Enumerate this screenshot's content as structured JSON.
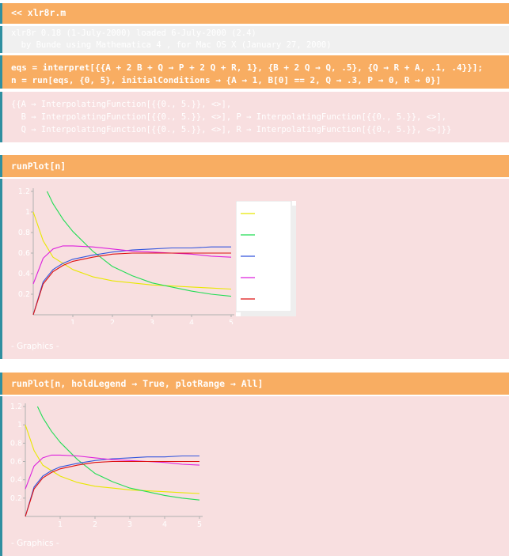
{
  "notebook": {
    "header_cell": "<< xlr8r.m",
    "version_lines": [
      "xlr8r 0.18 (1-July-2000) loaded 6-July-2000 (2.4)",
      "  by Bunde using Mathematica 4 , for Mac OS X (January 27, 2000)"
    ],
    "eqs_input": [
      "eqs = interpret[{{A + 2 B + Q → P + 2 Q + R, 1}, {B + 2 Q → Q, .5}, {Q → R + A, .1, .4}}];",
      "n = run[eqs, {0, 5}, initialConditions → {A → 1, B[0] == 2, Q → .3, P → 0, R → 0}]"
    ],
    "run_output": [
      "{{A → InterpolatingFunction[{{0., 5.}}, <>],",
      "  B → InterpolatingFunction[{{0., 5.}}, <>], P → InterpolatingFunction[{{0., 5.}}, <>],",
      "  Q → InterpolatingFunction[{{0., 5.}}, <>], R → InterpolatingFunction[{{0., 5.}}, <>]}}"
    ],
    "plot1_input": "runPlot[n]",
    "plot1_output": "- Graphics -",
    "plot2_input": "runPlot[n, holdLegend → True, plotRange → All]",
    "plot2_output": "- Graphics -"
  },
  "chart_data": [
    {
      "type": "line",
      "xlim": [
        0,
        5
      ],
      "ylim": [
        0,
        1.2
      ],
      "xticks": [
        "1",
        "2",
        "3",
        "4",
        "5"
      ],
      "yticks": [
        "0.2",
        "0.4",
        "0.6",
        "0.8",
        "1",
        "1.2"
      ],
      "legend": "right",
      "series": [
        {
          "color": "#e8e800",
          "x": [
            0,
            0.25,
            0.5,
            1,
            1.5,
            2,
            2.5,
            3,
            3.5,
            4,
            4.5,
            5
          ],
          "y": [
            1.0,
            0.72,
            0.56,
            0.44,
            0.37,
            0.33,
            0.31,
            0.29,
            0.28,
            0.27,
            0.26,
            0.25
          ]
        },
        {
          "color": "#22dd55",
          "x": [
            0.35,
            0.5,
            0.75,
            1,
            1.5,
            2,
            2.5,
            3,
            3.5,
            4,
            4.5,
            5
          ],
          "y": [
            1.2,
            1.08,
            0.93,
            0.81,
            0.62,
            0.47,
            0.38,
            0.31,
            0.27,
            0.23,
            0.2,
            0.18
          ]
        },
        {
          "color": "#3355dd",
          "x": [
            0,
            0.25,
            0.5,
            0.75,
            1,
            1.5,
            2,
            2.5,
            3,
            3.5,
            4,
            4.5,
            5
          ],
          "y": [
            0.0,
            0.32,
            0.44,
            0.5,
            0.54,
            0.58,
            0.61,
            0.63,
            0.64,
            0.65,
            0.65,
            0.66,
            0.66
          ]
        },
        {
          "color": "#dd22dd",
          "x": [
            0,
            0.25,
            0.5,
            0.75,
            1,
            1.5,
            2,
            2.5,
            3,
            3.5,
            4,
            4.5,
            5
          ],
          "y": [
            0.3,
            0.55,
            0.64,
            0.67,
            0.67,
            0.66,
            0.64,
            0.62,
            0.61,
            0.6,
            0.59,
            0.57,
            0.56
          ]
        },
        {
          "color": "#dd1111",
          "x": [
            0,
            0.25,
            0.5,
            0.75,
            1,
            1.5,
            2,
            2.5,
            3,
            3.5,
            4,
            4.5,
            5
          ],
          "y": [
            0.0,
            0.3,
            0.42,
            0.48,
            0.52,
            0.56,
            0.59,
            0.6,
            0.6,
            0.6,
            0.6,
            0.6,
            0.6
          ]
        }
      ]
    },
    {
      "type": "line",
      "xlim": [
        0,
        5
      ],
      "ylim": [
        0,
        1.2
      ],
      "xticks": [
        "1",
        "2",
        "3",
        "4",
        "5"
      ],
      "yticks": [
        "0.2",
        "0.4",
        "0.6",
        "0.8",
        "1",
        "1.2"
      ],
      "series": [
        {
          "color": "#e8e800",
          "x": [
            0,
            0.25,
            0.5,
            1,
            1.5,
            2,
            2.5,
            3,
            3.5,
            4,
            4.5,
            5
          ],
          "y": [
            1.0,
            0.72,
            0.56,
            0.44,
            0.37,
            0.33,
            0.31,
            0.29,
            0.28,
            0.27,
            0.26,
            0.25
          ]
        },
        {
          "color": "#22dd55",
          "x": [
            0.35,
            0.5,
            0.75,
            1,
            1.5,
            2,
            2.5,
            3,
            3.5,
            4,
            4.5,
            5
          ],
          "y": [
            1.2,
            1.08,
            0.93,
            0.81,
            0.62,
            0.47,
            0.38,
            0.31,
            0.27,
            0.23,
            0.2,
            0.18
          ]
        },
        {
          "color": "#3355dd",
          "x": [
            0,
            0.25,
            0.5,
            0.75,
            1,
            1.5,
            2,
            2.5,
            3,
            3.5,
            4,
            4.5,
            5
          ],
          "y": [
            0.0,
            0.32,
            0.44,
            0.5,
            0.54,
            0.58,
            0.61,
            0.63,
            0.64,
            0.65,
            0.65,
            0.66,
            0.66
          ]
        },
        {
          "color": "#dd22dd",
          "x": [
            0,
            0.25,
            0.5,
            0.75,
            1,
            1.5,
            2,
            2.5,
            3,
            3.5,
            4,
            4.5,
            5
          ],
          "y": [
            0.3,
            0.55,
            0.64,
            0.67,
            0.67,
            0.66,
            0.64,
            0.62,
            0.61,
            0.6,
            0.59,
            0.57,
            0.56
          ]
        },
        {
          "color": "#dd1111",
          "x": [
            0,
            0.25,
            0.5,
            0.75,
            1,
            1.5,
            2,
            2.5,
            3,
            3.5,
            4,
            4.5,
            5
          ],
          "y": [
            0.0,
            0.3,
            0.42,
            0.48,
            0.52,
            0.56,
            0.59,
            0.6,
            0.6,
            0.6,
            0.6,
            0.6,
            0.6
          ]
        }
      ]
    }
  ]
}
